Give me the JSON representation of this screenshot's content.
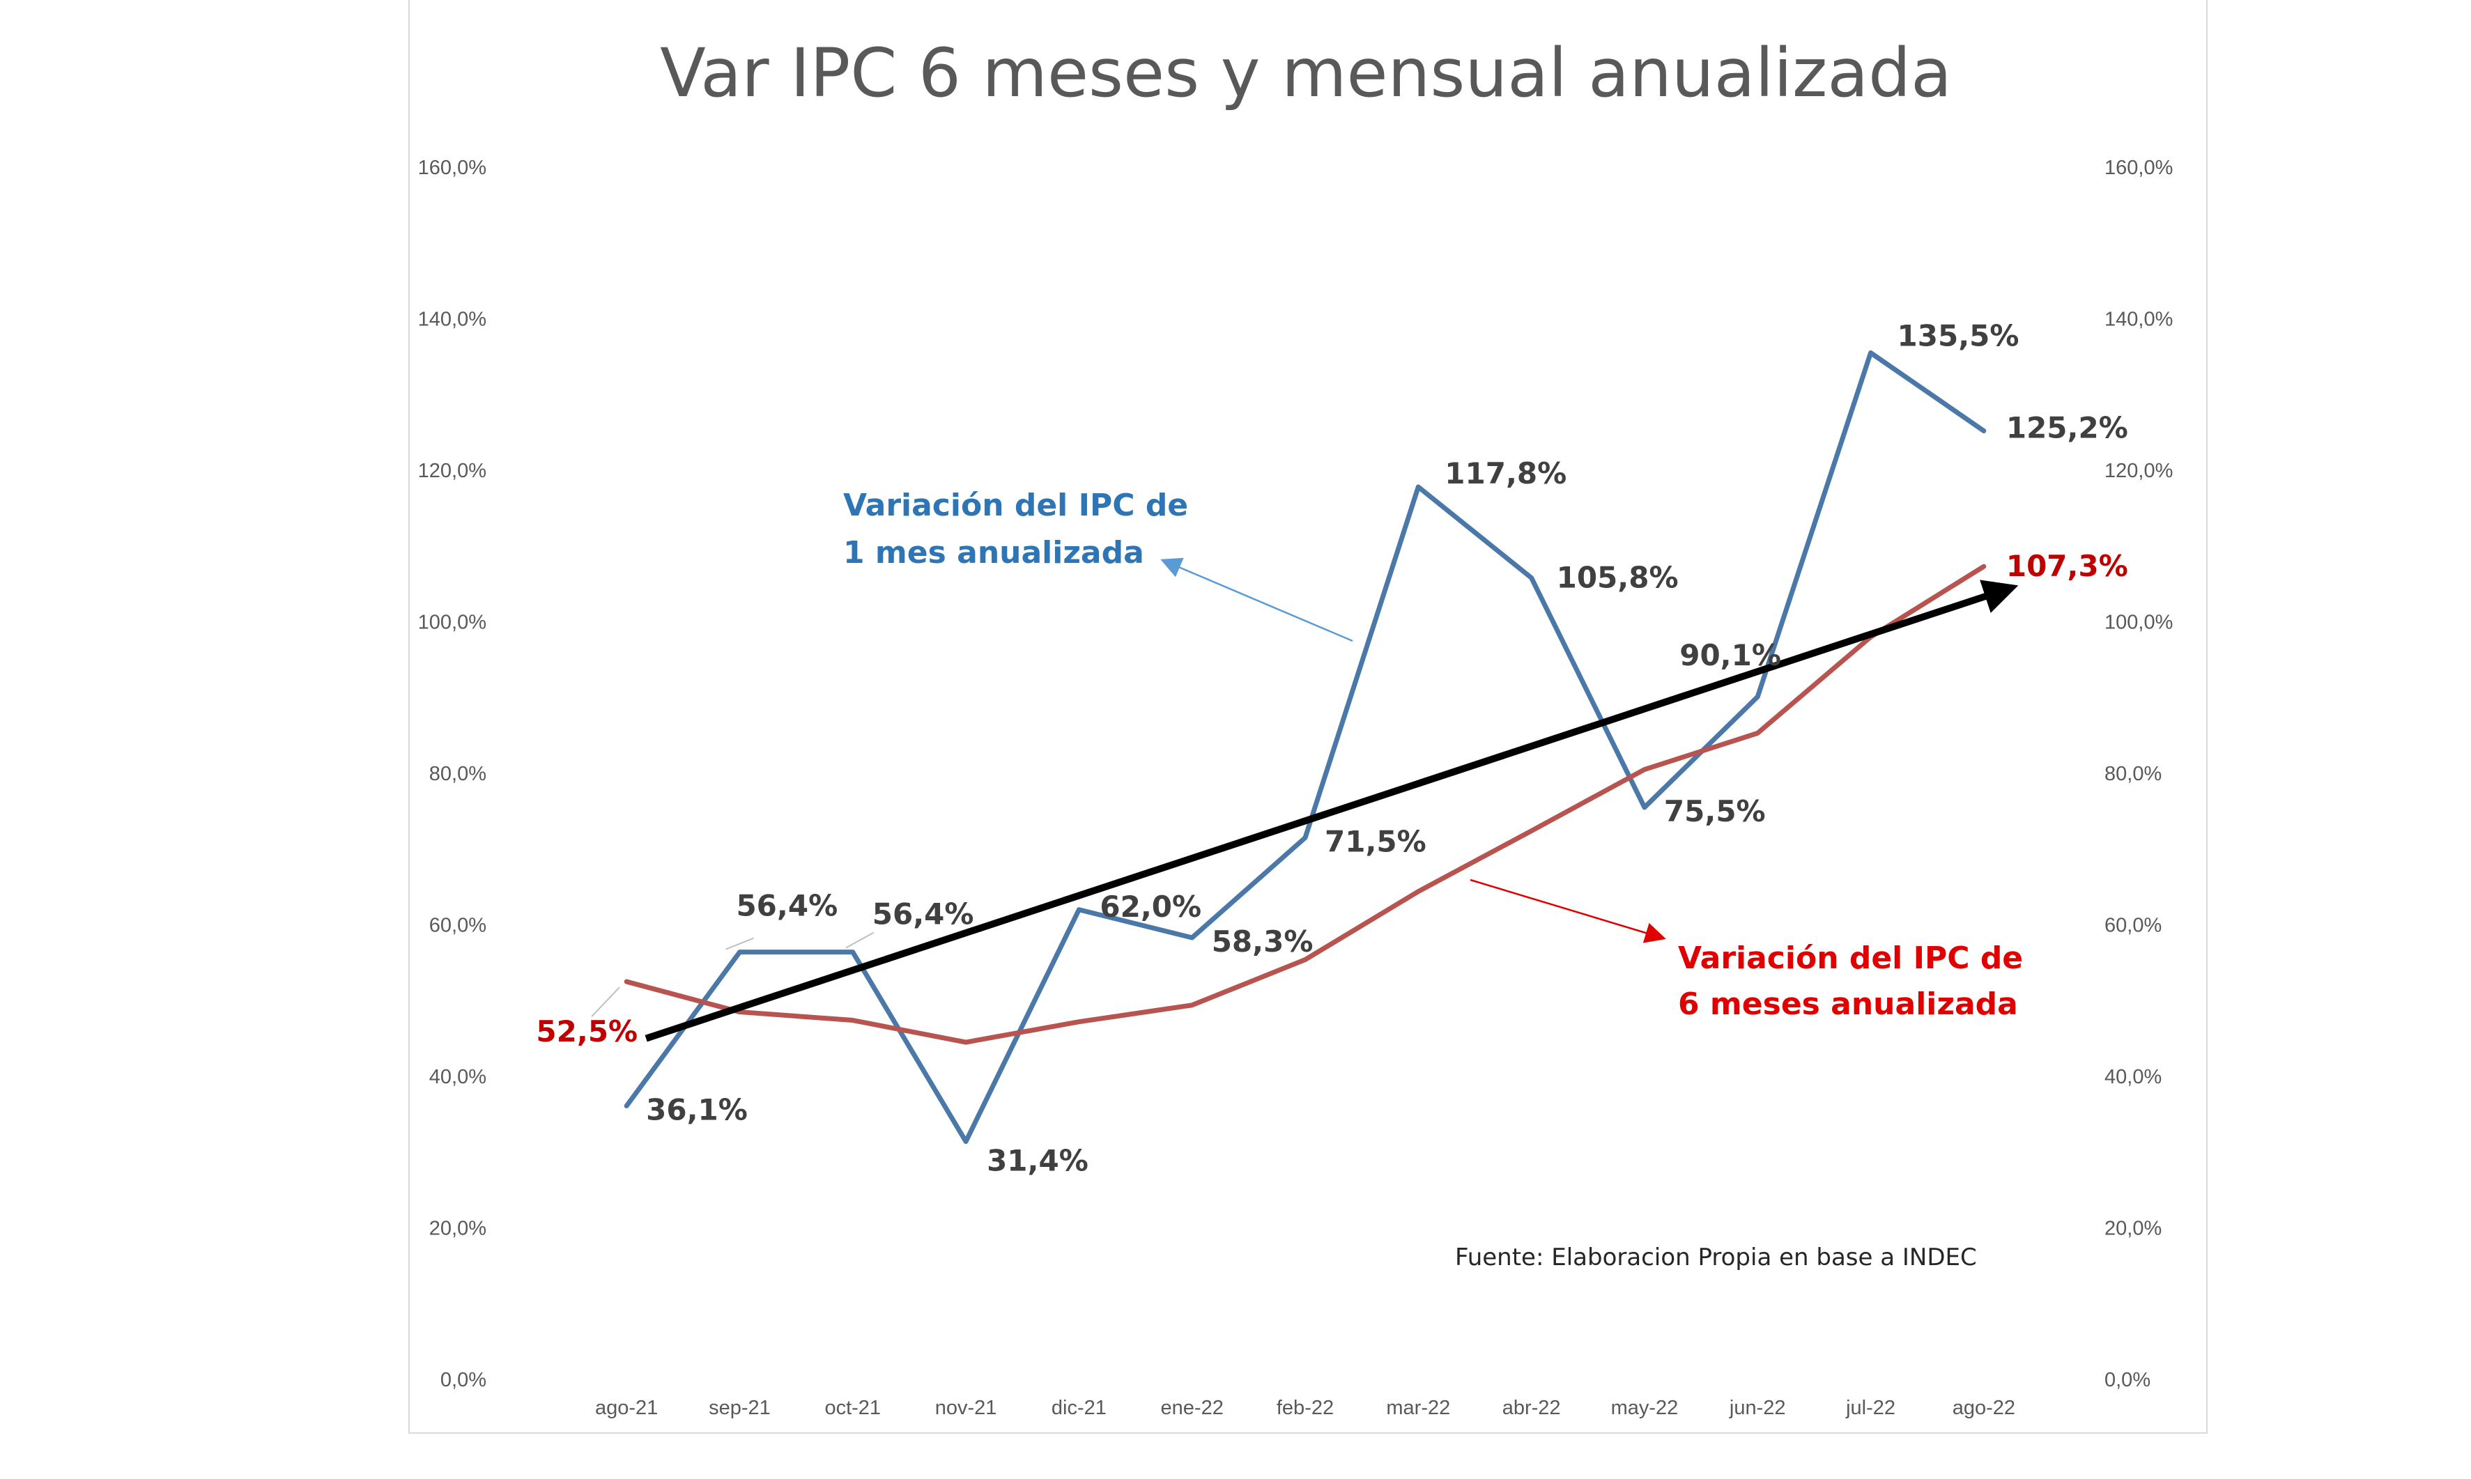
{
  "chart_data": {
    "type": "line",
    "title": "Var IPC 6 meses y mensual anualizada",
    "categories": [
      "ago-21",
      "sep-21",
      "oct-21",
      "nov-21",
      "dic-21",
      "ene-22",
      "feb-22",
      "mar-22",
      "abr-22",
      "may-22",
      "jun-22",
      "jul-22",
      "ago-22"
    ],
    "ylim": [
      0,
      160
    ],
    "yticks": [
      "0,0%",
      "20,0%",
      "40,0%",
      "60,0%",
      "80,0%",
      "100,0%",
      "120,0%",
      "140,0%",
      "160,0%"
    ],
    "y2ticks": [
      "0,0%",
      "20,0%",
      "40,0%",
      "60,0%",
      "80,0%",
      "100,0%",
      "120,0%",
      "140,0%",
      "160,0%"
    ],
    "series": [
      {
        "name": "Variación del IPC de 1 mes anualizada",
        "color": "#4a78a8",
        "values": [
          36.1,
          56.4,
          56.4,
          31.4,
          62.0,
          58.3,
          71.5,
          117.8,
          105.8,
          75.5,
          90.1,
          135.5,
          125.2
        ],
        "labels": [
          "36,1%",
          "56,4%",
          "56,4%",
          "31,4%",
          "62,0%",
          "58,3%",
          "71,5%",
          "117,8%",
          "105,8%",
          "75,5%",
          "90,1%",
          "135,5%",
          "125,2%"
        ]
      },
      {
        "name": "Variación del IPC de 6 meses anualizada",
        "color": "#b85450",
        "values": [
          52.5,
          48.5,
          47.4,
          44.5,
          47.2,
          49.4,
          55.4,
          64.4,
          72.4,
          80.5,
          85.3,
          98.0,
          107.3
        ],
        "labels": [
          "52,5%",
          "107,3%"
        ]
      }
    ],
    "trend": {
      "color": "#000000",
      "start": 45.0,
      "end": 104.5
    },
    "annotations": {
      "blue_line1": "Variación del IPC de",
      "blue_line2": "1 mes anualizada",
      "red_line1": "Variación del IPC de",
      "red_line2": "6 meses anualizada",
      "source": "Fuente: Elaboracion Propia en base a INDEC"
    },
    "grid": false,
    "legend": "none"
  }
}
